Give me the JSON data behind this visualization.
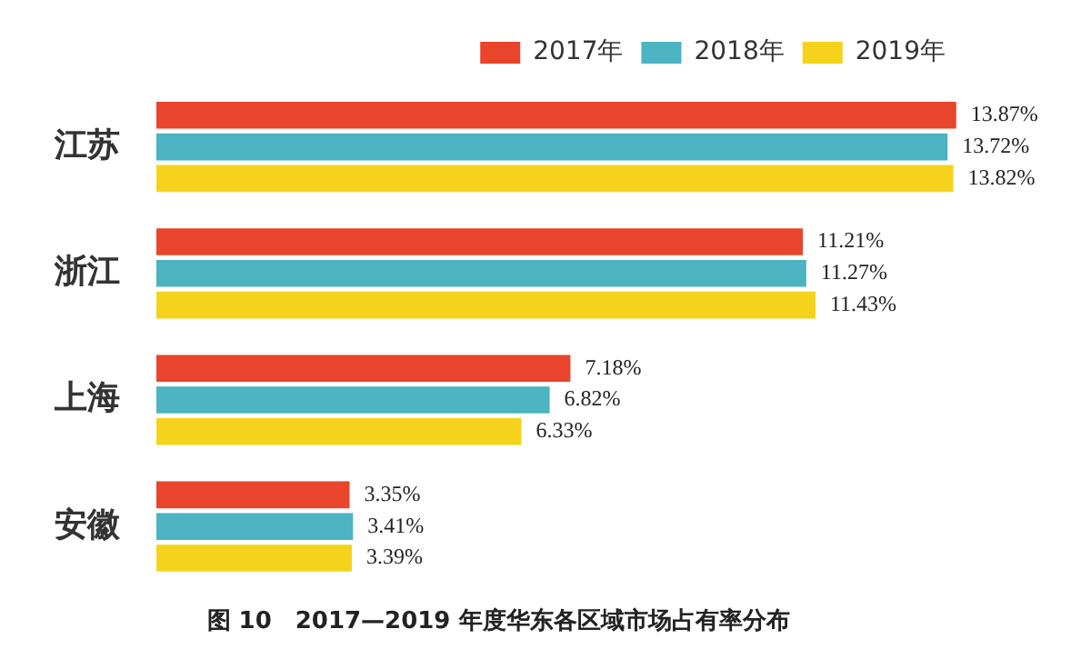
{
  "chart_data": {
    "type": "bar",
    "orientation": "horizontal",
    "title": "图 10　2017—2019 年度华东各区域市场占有率分布",
    "categories": [
      "江苏",
      "浙江",
      "上海",
      "安徽"
    ],
    "series": [
      {
        "name": "2017年",
        "color": "#e8452c",
        "values": [
          13.87,
          11.21,
          7.18,
          3.35
        ],
        "value_labels": [
          "13.87%",
          "11.21%",
          "7.18%",
          "3.35%"
        ]
      },
      {
        "name": "2018年",
        "color": "#4bb3c2",
        "values": [
          13.72,
          11.27,
          6.82,
          3.41
        ],
        "value_labels": [
          "13.72%",
          "11.27%",
          "6.82%",
          "3.41%"
        ]
      },
      {
        "name": "2019年",
        "color": "#f5d31c",
        "values": [
          13.82,
          11.43,
          6.33,
          3.39
        ],
        "value_labels": [
          "13.82%",
          "11.43%",
          "6.33%",
          "3.39%"
        ]
      }
    ],
    "tick_labels": "y",
    "legend": "top right"
  }
}
